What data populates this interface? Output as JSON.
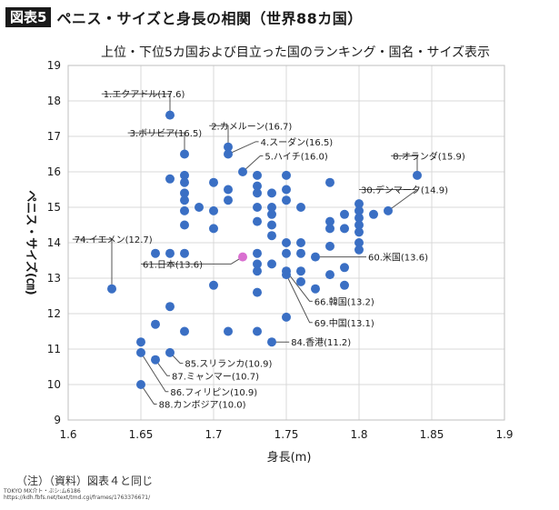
{
  "header": {
    "badge": "図表5",
    "title": "ペニス・サイズと身長の相関（世界88カ国）"
  },
  "chart_data": {
    "type": "scatter",
    "title": "上位・下位5カ国および目立った国のランキング・国名・サイズ表示",
    "xlabel": "身長(m)",
    "ylabel": "ペニス・サイズ(㎝)",
    "xlim": [
      1.6,
      1.9
    ],
    "ylim": [
      9,
      19
    ],
    "xticks": [
      1.6,
      1.65,
      1.7,
      1.75,
      1.8,
      1.85,
      1.9
    ],
    "xtick_labels": [
      "1.6",
      "1.65",
      "1.7",
      "1.75",
      "1.8",
      "1.85",
      "1.9"
    ],
    "yticks": [
      9,
      10,
      11,
      12,
      13,
      14,
      15,
      16,
      17,
      18,
      19
    ],
    "ytick_labels": [
      "9",
      "10",
      "11",
      "12",
      "13",
      "14",
      "15",
      "16",
      "17",
      "18",
      "19"
    ],
    "grid": true,
    "colors": {
      "point": "#3a6fc4",
      "highlight": "#d96fd0",
      "grid": "#d9d9d9",
      "axis": "#bfbfbf",
      "leader": "#555555"
    },
    "points": [
      [
        1.63,
        12.7
      ],
      [
        1.65,
        11.2
      ],
      [
        1.65,
        10.9
      ],
      [
        1.65,
        10.0
      ],
      [
        1.66,
        13.7
      ],
      [
        1.66,
        11.7
      ],
      [
        1.66,
        10.7
      ],
      [
        1.67,
        17.6
      ],
      [
        1.67,
        15.8
      ],
      [
        1.67,
        13.7
      ],
      [
        1.67,
        12.2
      ],
      [
        1.67,
        10.9
      ],
      [
        1.68,
        16.5
      ],
      [
        1.68,
        15.9
      ],
      [
        1.68,
        15.7
      ],
      [
        1.68,
        15.4
      ],
      [
        1.68,
        15.2
      ],
      [
        1.68,
        14.9
      ],
      [
        1.68,
        14.5
      ],
      [
        1.68,
        13.7
      ],
      [
        1.68,
        11.5
      ],
      [
        1.69,
        15.0
      ],
      [
        1.7,
        15.7
      ],
      [
        1.7,
        14.9
      ],
      [
        1.7,
        14.4
      ],
      [
        1.7,
        12.8
      ],
      [
        1.71,
        16.7
      ],
      [
        1.71,
        16.5
      ],
      [
        1.71,
        15.5
      ],
      [
        1.71,
        15.2
      ],
      [
        1.71,
        11.5
      ],
      [
        1.72,
        16.0
      ],
      [
        1.73,
        15.9
      ],
      [
        1.73,
        15.6
      ],
      [
        1.73,
        15.4
      ],
      [
        1.73,
        15.0
      ],
      [
        1.73,
        14.6
      ],
      [
        1.73,
        13.7
      ],
      [
        1.73,
        13.4
      ],
      [
        1.73,
        13.2
      ],
      [
        1.73,
        12.6
      ],
      [
        1.73,
        11.5
      ],
      [
        1.74,
        15.4
      ],
      [
        1.74,
        15.0
      ],
      [
        1.74,
        14.8
      ],
      [
        1.74,
        14.5
      ],
      [
        1.74,
        14.2
      ],
      [
        1.74,
        13.4
      ],
      [
        1.74,
        11.2
      ],
      [
        1.75,
        15.9
      ],
      [
        1.75,
        15.5
      ],
      [
        1.75,
        15.2
      ],
      [
        1.75,
        14.0
      ],
      [
        1.75,
        13.7
      ],
      [
        1.75,
        13.2
      ],
      [
        1.75,
        13.1
      ],
      [
        1.75,
        11.9
      ],
      [
        1.76,
        15.0
      ],
      [
        1.76,
        14.0
      ],
      [
        1.76,
        13.7
      ],
      [
        1.76,
        13.2
      ],
      [
        1.76,
        12.9
      ],
      [
        1.77,
        13.6
      ],
      [
        1.77,
        12.7
      ],
      [
        1.78,
        15.7
      ],
      [
        1.78,
        14.6
      ],
      [
        1.78,
        14.4
      ],
      [
        1.78,
        13.9
      ],
      [
        1.78,
        13.1
      ],
      [
        1.79,
        14.8
      ],
      [
        1.79,
        14.4
      ],
      [
        1.79,
        13.3
      ],
      [
        1.79,
        12.8
      ],
      [
        1.8,
        15.1
      ],
      [
        1.8,
        14.9
      ],
      [
        1.8,
        14.7
      ],
      [
        1.8,
        14.5
      ],
      [
        1.8,
        14.3
      ],
      [
        1.8,
        14.0
      ],
      [
        1.8,
        13.8
      ],
      [
        1.81,
        14.8
      ],
      [
        1.82,
        14.9
      ],
      [
        1.84,
        15.9
      ]
    ],
    "highlight": {
      "x": 1.72,
      "y": 13.6
    },
    "annotations": [
      {
        "label": "1.エクアドル(17.6)",
        "x": 1.67,
        "y": 17.6,
        "tx": 1.623,
        "ty": 18.2,
        "anchor": "start",
        "via": [
          1.67,
          18.2
        ]
      },
      {
        "label": "2.カメルーン(16.7)",
        "x": 1.71,
        "y": 16.7,
        "tx": 1.697,
        "ty": 17.3,
        "anchor": "start",
        "via": [
          1.71,
          17.3
        ]
      },
      {
        "label": "3.ボリビア(16.5)",
        "x": 1.68,
        "y": 16.5,
        "tx": 1.641,
        "ty": 17.1,
        "anchor": "start",
        "via": [
          1.68,
          17.1
        ]
      },
      {
        "label": "4.スーダン(16.5)",
        "x": 1.71,
        "y": 16.5,
        "tx": 1.731,
        "ty": 16.85,
        "anchor": "start",
        "via": [
          1.729,
          16.85
        ]
      },
      {
        "label": "5.ハイチ(16.0)",
        "x": 1.72,
        "y": 16.0,
        "tx": 1.734,
        "ty": 16.45,
        "anchor": "start",
        "via": [
          1.732,
          16.45
        ]
      },
      {
        "label": "8.オランダ(15.9)",
        "x": 1.84,
        "y": 15.9,
        "tx": 1.822,
        "ty": 16.45,
        "anchor": "start",
        "via": [
          1.84,
          16.45
        ]
      },
      {
        "label": "30.デンマーク(14.9)",
        "x": 1.82,
        "y": 14.9,
        "tx": 1.8,
        "ty": 15.5,
        "anchor": "start",
        "via": [
          1.84,
          15.5
        ]
      },
      {
        "label": "74.イエメン(12.7)",
        "x": 1.63,
        "y": 12.7,
        "tx": 1.603,
        "ty": 14.1,
        "anchor": "start",
        "via": [
          1.63,
          14.1
        ]
      },
      {
        "label": "61.日本(13.6)",
        "x": 1.72,
        "y": 13.6,
        "tx": 1.65,
        "ty": 13.4,
        "anchor": "start",
        "via": [
          1.712,
          13.4
        ]
      },
      {
        "label": "60.米国(13.6)",
        "x": 1.77,
        "y": 13.6,
        "tx": 1.805,
        "ty": 13.6,
        "anchor": "start",
        "via": [
          1.803,
          13.6
        ]
      },
      {
        "label": "66.韓国(13.2)",
        "x": 1.75,
        "y": 13.2,
        "tx": 1.768,
        "ty": 12.35,
        "anchor": "start",
        "via": [
          1.766,
          12.35
        ]
      },
      {
        "label": "69.中国(13.1)",
        "x": 1.75,
        "y": 13.1,
        "tx": 1.768,
        "ty": 11.75,
        "anchor": "start",
        "via": [
          1.766,
          11.75
        ]
      },
      {
        "label": "84.香港(11.2)",
        "x": 1.74,
        "y": 11.2,
        "tx": 1.752,
        "ty": 11.2,
        "anchor": "start",
        "via": [
          1.75,
          11.2
        ]
      },
      {
        "label": "85.スリランカ(10.9)",
        "x": 1.67,
        "y": 10.9,
        "tx": 1.679,
        "ty": 10.6,
        "anchor": "start",
        "via": [
          1.677,
          10.6
        ]
      },
      {
        "label": "87.ミャンマー(10.7)",
        "x": 1.66,
        "y": 10.7,
        "tx": 1.67,
        "ty": 10.25,
        "anchor": "start",
        "via": [
          1.668,
          10.25
        ]
      },
      {
        "label": "86.フィリピン(10.9)",
        "x": 1.65,
        "y": 10.9,
        "tx": 1.669,
        "ty": 9.8,
        "anchor": "start",
        "via": [
          1.667,
          9.8
        ]
      },
      {
        "label": "88.カンボジア(10.0)",
        "x": 1.65,
        "y": 10.0,
        "tx": 1.661,
        "ty": 9.45,
        "anchor": "start",
        "via": [
          1.659,
          9.45
        ]
      }
    ]
  },
  "footer": {
    "note": "（注）（資料）図表４と同じ",
    "small_line1": "TOKYO MX介ト・ぶシ:ム6186",
    "small_line2": "https://kdh.fbfs.net/text/tmd.cgi/frames/1763376671/"
  }
}
